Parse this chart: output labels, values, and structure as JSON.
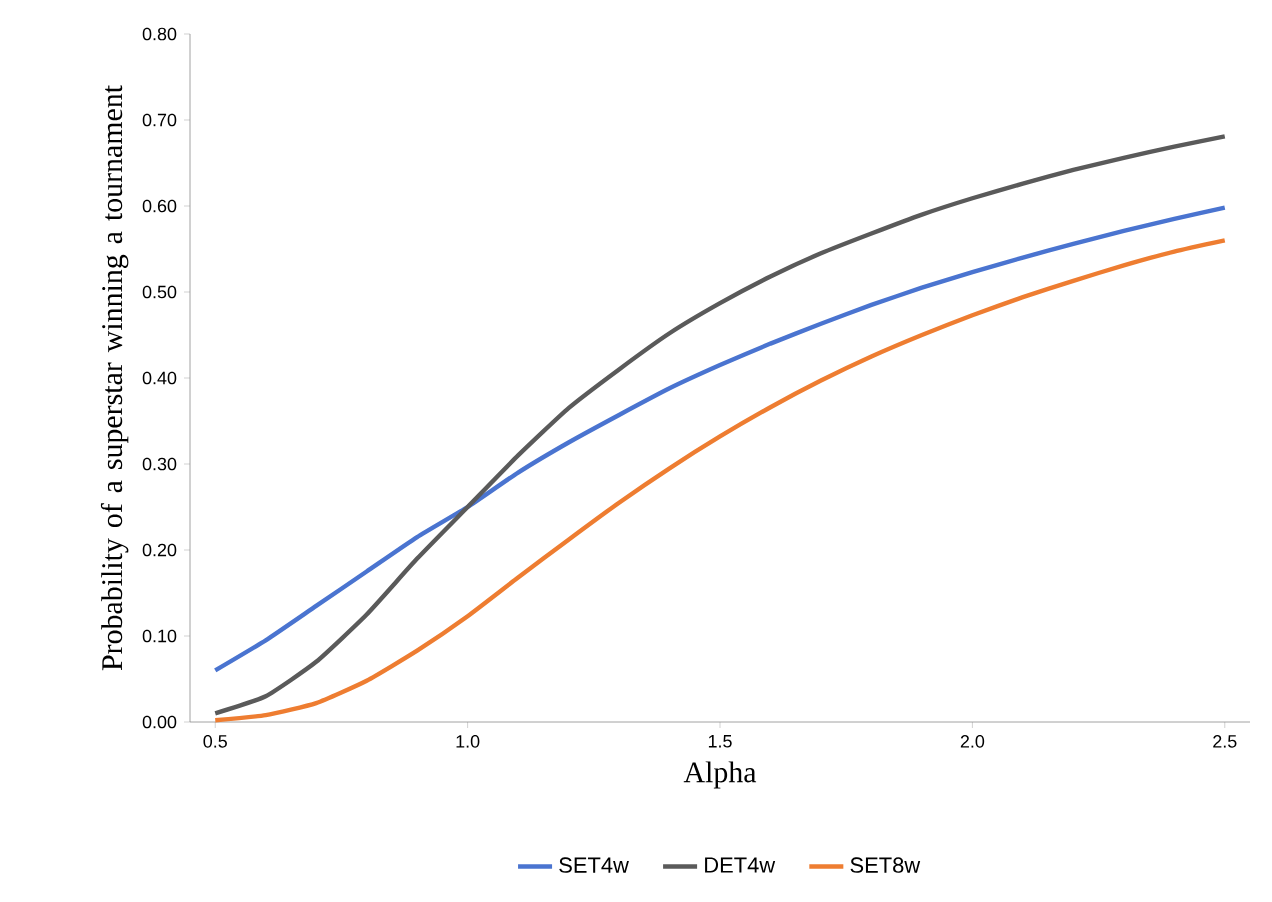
{
  "chart_data": {
    "type": "line",
    "xlabel": "Alpha",
    "ylabel": "Probability of a superstar winning a tournament",
    "x": [
      0.5,
      0.6,
      0.7,
      0.8,
      0.9,
      1.0,
      1.1,
      1.2,
      1.3,
      1.4,
      1.5,
      1.6,
      1.7,
      1.8,
      1.9,
      2.0,
      2.1,
      2.2,
      2.3,
      2.4,
      2.5
    ],
    "series": [
      {
        "name": "SET4w",
        "color": "#4a74d0",
        "values": [
          0.06,
          0.095,
          0.135,
          0.175,
          0.215,
          0.25,
          0.29,
          0.325,
          0.357,
          0.388,
          0.415,
          0.44,
          0.463,
          0.485,
          0.505,
          0.523,
          0.54,
          0.556,
          0.571,
          0.585,
          0.598
        ]
      },
      {
        "name": "DET4w",
        "color": "#5a5a5a",
        "values": [
          0.01,
          0.03,
          0.07,
          0.125,
          0.19,
          0.25,
          0.31,
          0.365,
          0.41,
          0.452,
          0.487,
          0.518,
          0.545,
          0.568,
          0.59,
          0.609,
          0.626,
          0.642,
          0.656,
          0.669,
          0.681
        ]
      },
      {
        "name": "SET8w",
        "color": "#ee7d31",
        "values": [
          0.002,
          0.008,
          0.022,
          0.048,
          0.083,
          0.123,
          0.168,
          0.212,
          0.255,
          0.295,
          0.332,
          0.366,
          0.397,
          0.425,
          0.45,
          0.473,
          0.494,
          0.513,
          0.531,
          0.547,
          0.56
        ]
      }
    ],
    "xlim": [
      0.45,
      2.55
    ],
    "ylim": [
      0,
      0.8
    ],
    "xticks": [
      {
        "value": 0.5,
        "label": "0.5"
      },
      {
        "value": 1.0,
        "label": "1.0"
      },
      {
        "value": 1.5,
        "label": "1.5"
      },
      {
        "value": 2.0,
        "label": "2.0"
      },
      {
        "value": 2.5,
        "label": "2.5"
      }
    ],
    "yticks": [
      {
        "value": 0,
        "label": "0.00"
      },
      {
        "value": 0.1,
        "label": "0.10"
      },
      {
        "value": 0.2,
        "label": "0.20"
      },
      {
        "value": 0.3,
        "label": "0.30"
      },
      {
        "value": 0.4,
        "label": "0.40"
      },
      {
        "value": 0.5,
        "label": "0.50"
      },
      {
        "value": 0.6,
        "label": "0.60"
      },
      {
        "value": 0.7,
        "label": "0.70"
      },
      {
        "value": 0.8,
        "label": "0.80"
      }
    ],
    "grid": false,
    "legend": "bottom",
    "line_style": "solid"
  }
}
